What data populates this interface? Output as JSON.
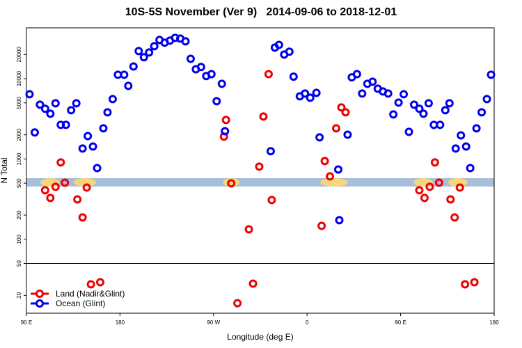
{
  "chart_data": {
    "type": "scatter",
    "title": "10S-5S November (Ver 9)   2014-09-06 to 2018-12-01",
    "x_label": "Longitude (deg E)",
    "y_label": "N Total",
    "log_y": true,
    "xlim": [
      90,
      540
    ],
    "ylim": [
      12,
      43000
    ],
    "break_at": 50,
    "xticks": [
      {
        "value": 90,
        "label": "90 E"
      },
      {
        "value": 180,
        "label": "180"
      },
      {
        "value": 270,
        "label": "90 W"
      },
      {
        "value": 360,
        "label": "0"
      },
      {
        "value": 450,
        "label": "90 E"
      },
      {
        "value": 540,
        "label": "180"
      }
    ],
    "yticks": [
      20,
      50,
      100,
      200,
      500,
      1000,
      2000,
      5000,
      10000,
      20000
    ],
    "legend": "bottom left",
    "series": [
      {
        "name": "Land (Nadir&Glint)",
        "color": "#ee0000",
        "x": [
          108,
          113,
          118,
          123,
          127,
          139,
          144,
          148,
          152,
          161,
          280,
          282,
          287,
          293,
          304,
          308,
          314,
          318,
          323,
          326,
          374,
          377,
          382,
          388,
          393,
          397,
          468,
          473,
          478,
          483,
          487,
          498,
          502,
          507,
          512,
          521
        ],
        "values": [
          408,
          327,
          450,
          906,
          507,
          314,
          187,
          441,
          27.5,
          29.2,
          1900,
          3060,
          498,
          16,
          133,
          28,
          804,
          3380,
          11400,
          308,
          147,
          942,
          607,
          2410,
          4390,
          3810,
          408,
          327,
          450,
          906,
          507,
          314,
          187,
          441,
          27.5,
          29.2
        ]
      },
      {
        "name": "Ocean (Glint)",
        "color": "#0000ee",
        "x": [
          93,
          98,
          103,
          108,
          113,
          118,
          123,
          128,
          133,
          138,
          144,
          149,
          154,
          158,
          164,
          168,
          173,
          178,
          184,
          188,
          193,
          198,
          203,
          208,
          213,
          218,
          223,
          228,
          233,
          238,
          243,
          248,
          253,
          258,
          263,
          268,
          273,
          278,
          281,
          325,
          329,
          333,
          338,
          343,
          347,
          353,
          358,
          363,
          369,
          372,
          390,
          391,
          399,
          403,
          408,
          413,
          418,
          423,
          428,
          433,
          438,
          443,
          448,
          453,
          458,
          463,
          468,
          472,
          477,
          482,
          488,
          493,
          497,
          503,
          508,
          513,
          517,
          523,
          528,
          533,
          537
        ],
        "values": [
          6400,
          2140,
          4750,
          4220,
          3660,
          4940,
          2660,
          2660,
          4050,
          4940,
          1350,
          1930,
          1430,
          770,
          2410,
          3810,
          5570,
          11200,
          11200,
          8140,
          14200,
          22100,
          18500,
          21200,
          25400,
          30400,
          28100,
          29800,
          32300,
          31600,
          29200,
          17700,
          13100,
          14000,
          10800,
          11400,
          5250,
          8650,
          2220,
          1250,
          24400,
          26400,
          20000,
          21700,
          10600,
          6040,
          6540,
          5800,
          6670,
          1860,
          740,
          173,
          2010,
          10400,
          11400,
          6540,
          8650,
          9180,
          7520,
          6940,
          6540,
          3590,
          5040,
          6400,
          2180,
          4750,
          4220,
          3660,
          4940,
          2660,
          2660,
          4050,
          4940,
          1350,
          1970,
          1430,
          770,
          2410,
          3810,
          5570,
          11200
        ]
      }
    ]
  }
}
